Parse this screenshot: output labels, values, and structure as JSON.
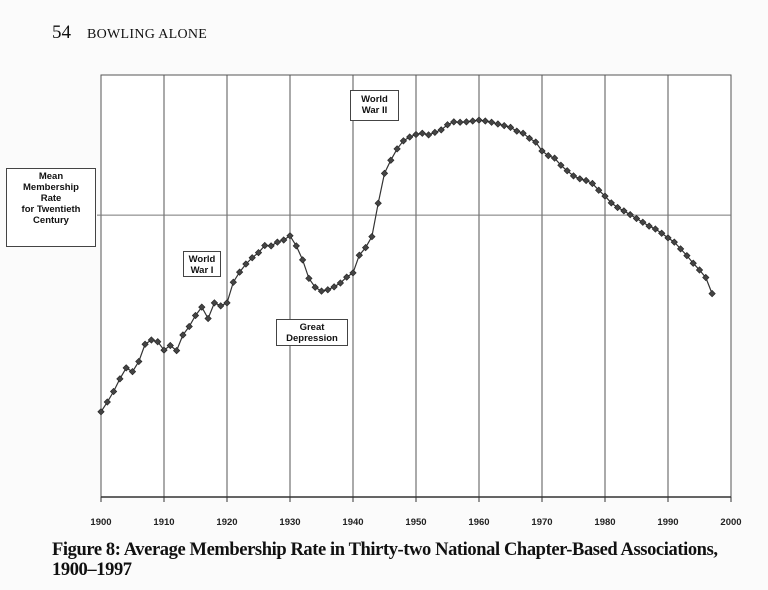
{
  "page_header": {
    "page_number": "54",
    "running_title": "BOWLING ALONE"
  },
  "chart_data": {
    "type": "line",
    "title": "",
    "caption": "Figure 8: Average Membership Rate in Thirty-two National Chapter-Based Associations, 1900–1997",
    "xlabel": "",
    "ylabel": "",
    "xlim": [
      1900,
      2000
    ],
    "ylim": [
      0,
      100
    ],
    "y_units": "relative index (no y-axis printed)",
    "x_ticks": [
      "1900",
      "1910",
      "1920",
      "1930",
      "1940",
      "1950",
      "1960",
      "1970",
      "1980",
      "1990",
      "2000"
    ],
    "grid": "vertical lines every 10 years",
    "marker": "diamond",
    "line_color": "#333333",
    "x": [
      1900,
      1901,
      1902,
      1903,
      1904,
      1905,
      1906,
      1907,
      1908,
      1909,
      1910,
      1911,
      1912,
      1913,
      1914,
      1915,
      1916,
      1917,
      1918,
      1919,
      1920,
      1921,
      1922,
      1923,
      1924,
      1925,
      1926,
      1927,
      1928,
      1929,
      1930,
      1931,
      1932,
      1933,
      1934,
      1935,
      1936,
      1937,
      1938,
      1939,
      1940,
      1941,
      1942,
      1943,
      1944,
      1945,
      1946,
      1947,
      1948,
      1949,
      1950,
      1951,
      1952,
      1953,
      1954,
      1955,
      1956,
      1957,
      1958,
      1959,
      1960,
      1961,
      1962,
      1963,
      1964,
      1965,
      1966,
      1967,
      1968,
      1969,
      1970,
      1971,
      1972,
      1973,
      1974,
      1975,
      1976,
      1977,
      1978,
      1979,
      1980,
      1981,
      1982,
      1983,
      1984,
      1985,
      1986,
      1987,
      1988,
      1989,
      1990,
      1991,
      1992,
      1993,
      1994,
      1995,
      1996,
      1997
    ],
    "values": [
      20.2,
      22.5,
      25.0,
      28.0,
      30.6,
      29.7,
      32.1,
      36.2,
      37.2,
      36.8,
      34.8,
      35.9,
      34.7,
      38.4,
      40.4,
      43.0,
      45.0,
      42.3,
      46.0,
      45.3,
      46.0,
      50.9,
      53.3,
      55.2,
      56.7,
      57.9,
      59.6,
      59.5,
      60.4,
      60.9,
      61.9,
      59.5,
      56.2,
      51.8,
      49.7,
      48.8,
      49.1,
      49.8,
      50.7,
      52.1,
      53.1,
      57.3,
      59.1,
      61.7,
      69.6,
      76.7,
      79.8,
      82.5,
      84.4,
      85.3,
      85.9,
      86.2,
      85.8,
      86.4,
      87.0,
      88.2,
      88.9,
      88.8,
      88.9,
      89.1,
      89.3,
      89.1,
      88.8,
      88.4,
      88.0,
      87.6,
      86.7,
      86.2,
      85.0,
      84.1,
      82.0,
      80.9,
      80.3,
      78.6,
      77.3,
      76.1,
      75.4,
      75.0,
      74.3,
      72.7,
      71.3,
      69.7,
      68.6,
      67.8,
      66.9,
      66.0,
      65.1,
      64.2,
      63.5,
      62.5,
      61.4,
      60.4,
      58.8,
      57.2,
      55.4,
      53.8,
      52.0,
      48.2
    ],
    "reference_line": {
      "label": "Mean\nMembership\nRate\nfor Twentieth\nCentury",
      "value": 66.8
    },
    "annotations": [
      {
        "label": "World\nWar I",
        "year": 1915
      },
      {
        "label": "Great\nDepression",
        "year": 1933
      },
      {
        "label": "World\nWar II",
        "year": 1942
      }
    ]
  }
}
